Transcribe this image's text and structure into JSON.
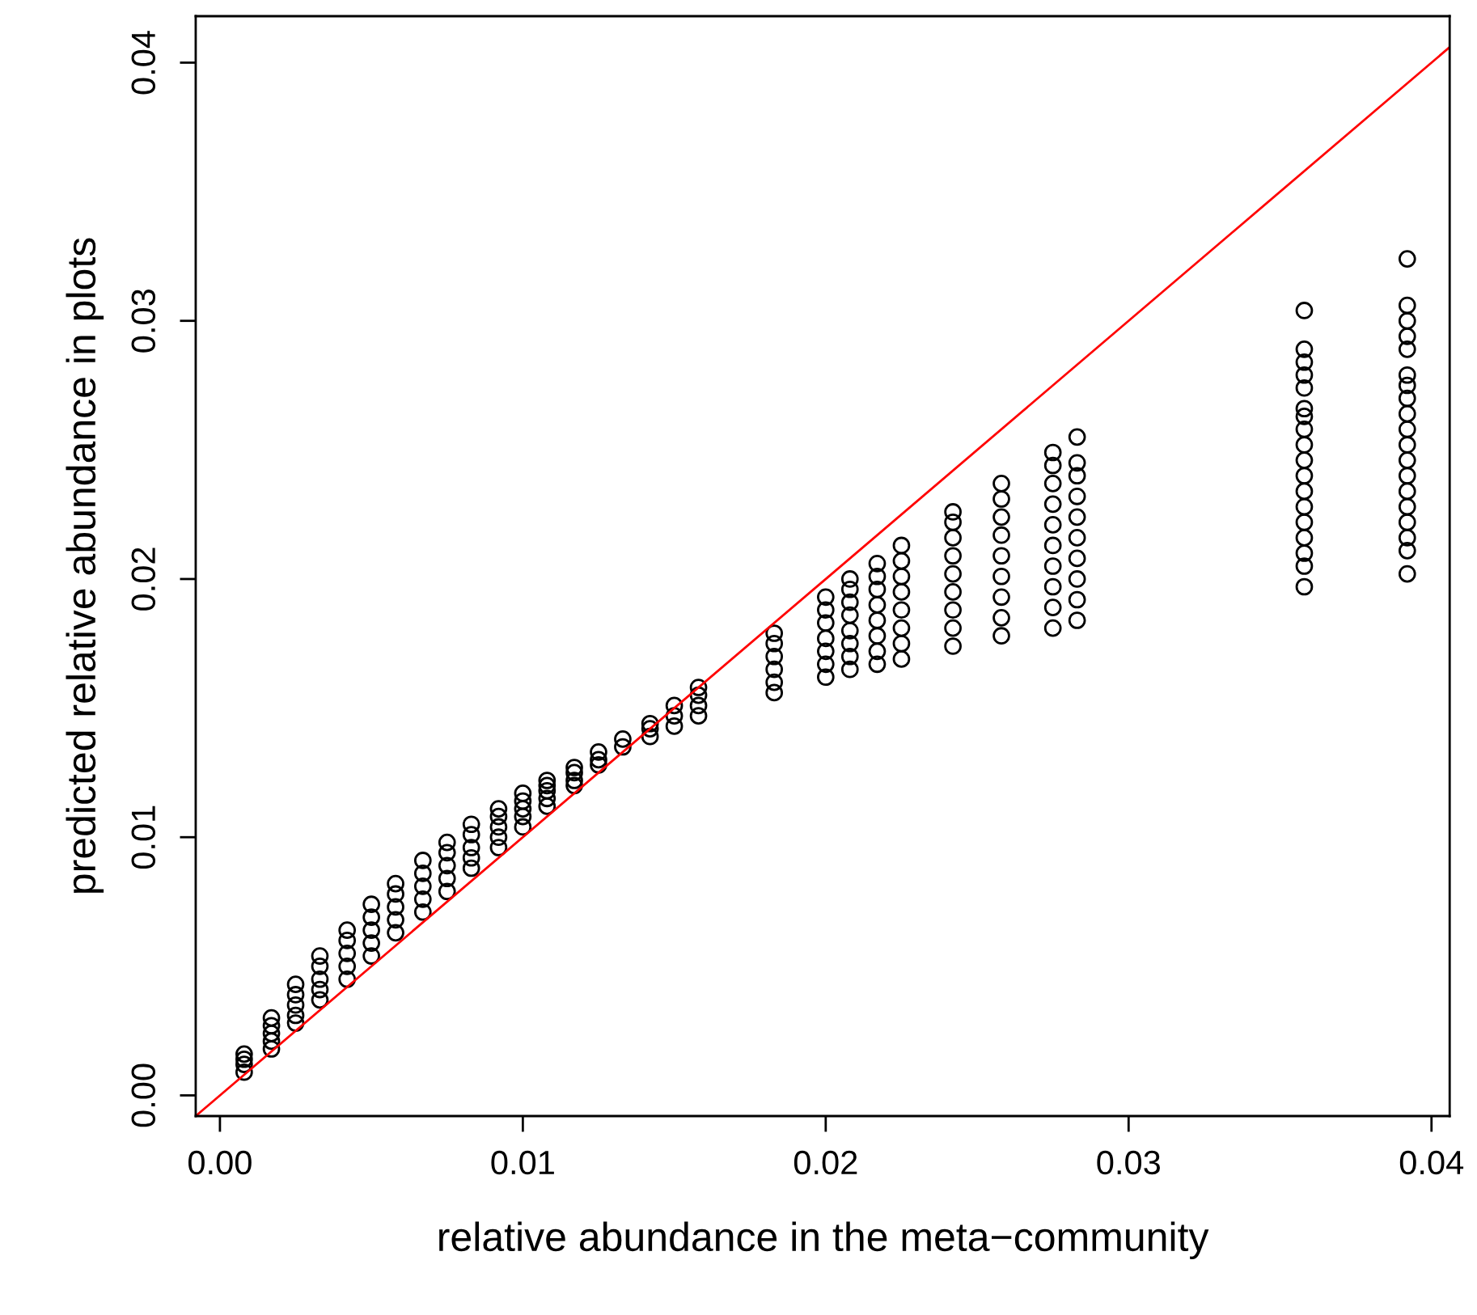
{
  "chart_data": {
    "type": "scatter",
    "xlabel": "relative abundance in the meta−community",
    "ylabel": "predicted relative abundance in plots",
    "xlim": [
      -0.0008,
      0.0406
    ],
    "ylim": [
      -0.0008,
      0.0418
    ],
    "xticks": [
      {
        "value": 0,
        "label": "0.00"
      },
      {
        "value": 0.01,
        "label": "0.01"
      },
      {
        "value": 0.02,
        "label": "0.02"
      },
      {
        "value": 0.03,
        "label": "0.03"
      },
      {
        "value": 0.04,
        "label": "0.04"
      }
    ],
    "yticks": [
      {
        "value": 0,
        "label": "0.00"
      },
      {
        "value": 0.01,
        "label": "0.01"
      },
      {
        "value": 0.02,
        "label": "0.02"
      },
      {
        "value": 0.03,
        "label": "0.03"
      },
      {
        "value": 0.04,
        "label": "0.04"
      }
    ],
    "grid": false,
    "series": [
      {
        "marker": "circle",
        "color": "#000000",
        "x": [
          0.0008,
          0.0008,
          0.0008,
          0.0008,
          0.0017,
          0.0017,
          0.0017,
          0.0017,
          0.0017,
          0.0025,
          0.0025,
          0.0025,
          0.0025,
          0.0025,
          0.0033,
          0.0033,
          0.0033,
          0.0033,
          0.0033,
          0.0042,
          0.0042,
          0.0042,
          0.0042,
          0.0042,
          0.005,
          0.005,
          0.005,
          0.005,
          0.005,
          0.0058,
          0.0058,
          0.0058,
          0.0058,
          0.0058,
          0.0067,
          0.0067,
          0.0067,
          0.0067,
          0.0067,
          0.0075,
          0.0075,
          0.0075,
          0.0075,
          0.0075,
          0.0083,
          0.0083,
          0.0083,
          0.0083,
          0.0083,
          0.0092,
          0.0092,
          0.0092,
          0.0092,
          0.0092,
          0.01,
          0.01,
          0.01,
          0.01,
          0.01,
          0.0108,
          0.0108,
          0.0108,
          0.0108,
          0.0108,
          0.0117,
          0.0117,
          0.0117,
          0.0117,
          0.0125,
          0.0125,
          0.0125,
          0.0133,
          0.0133,
          0.0142,
          0.0142,
          0.0142,
          0.015,
          0.015,
          0.015,
          0.0158,
          0.0158,
          0.0158,
          0.0158,
          0.0183,
          0.0183,
          0.0183,
          0.0183,
          0.0183,
          0.0183,
          0.02,
          0.02,
          0.02,
          0.02,
          0.02,
          0.02,
          0.02,
          0.0208,
          0.0208,
          0.0208,
          0.0208,
          0.0208,
          0.0208,
          0.0208,
          0.0208,
          0.0217,
          0.0217,
          0.0217,
          0.0217,
          0.0217,
          0.0217,
          0.0217,
          0.0217,
          0.0225,
          0.0225,
          0.0225,
          0.0225,
          0.0225,
          0.0225,
          0.0225,
          0.0225,
          0.0242,
          0.0242,
          0.0242,
          0.0242,
          0.0242,
          0.0242,
          0.0242,
          0.0242,
          0.0242,
          0.0258,
          0.0258,
          0.0258,
          0.0258,
          0.0258,
          0.0258,
          0.0258,
          0.0258,
          0.0258,
          0.0275,
          0.0275,
          0.0275,
          0.0275,
          0.0275,
          0.0275,
          0.0275,
          0.0275,
          0.0275,
          0.0275,
          0.0283,
          0.0283,
          0.0283,
          0.0283,
          0.0283,
          0.0283,
          0.0283,
          0.0283,
          0.0283,
          0.0283,
          0.0358,
          0.0358,
          0.0358,
          0.0358,
          0.0358,
          0.0358,
          0.0358,
          0.0358,
          0.0358,
          0.0358,
          0.0358,
          0.0358,
          0.0358,
          0.0358,
          0.0358,
          0.0358,
          0.0358,
          0.0358,
          0.0392,
          0.0392,
          0.0392,
          0.0392,
          0.0392,
          0.0392,
          0.0392,
          0.0392,
          0.0392,
          0.0392,
          0.0392,
          0.0392,
          0.0392,
          0.0392,
          0.0392,
          0.0392,
          0.0392,
          0.0392,
          0.0392
        ],
        "values": [
          0.0009,
          0.0012,
          0.0014,
          0.0016,
          0.0018,
          0.0021,
          0.0024,
          0.0027,
          0.003,
          0.0028,
          0.0031,
          0.0035,
          0.0039,
          0.0043,
          0.0037,
          0.0041,
          0.0045,
          0.005,
          0.0054,
          0.0045,
          0.005,
          0.0055,
          0.006,
          0.0064,
          0.0054,
          0.0059,
          0.0064,
          0.0069,
          0.0074,
          0.0063,
          0.0068,
          0.0073,
          0.0078,
          0.0082,
          0.0071,
          0.0076,
          0.0081,
          0.0086,
          0.0091,
          0.0079,
          0.0084,
          0.0089,
          0.0094,
          0.0098,
          0.0088,
          0.0092,
          0.0096,
          0.0101,
          0.0105,
          0.0096,
          0.01,
          0.0104,
          0.0108,
          0.0111,
          0.0104,
          0.0108,
          0.0111,
          0.0114,
          0.0117,
          0.0112,
          0.0115,
          0.0118,
          0.012,
          0.0122,
          0.012,
          0.0122,
          0.0125,
          0.0127,
          0.0128,
          0.013,
          0.0133,
          0.0135,
          0.0138,
          0.0139,
          0.0142,
          0.0144,
          0.0143,
          0.0147,
          0.0151,
          0.0147,
          0.0151,
          0.0155,
          0.0158,
          0.0156,
          0.016,
          0.0165,
          0.017,
          0.0175,
          0.0179,
          0.0162,
          0.0167,
          0.0172,
          0.0177,
          0.0183,
          0.0188,
          0.0193,
          0.0165,
          0.017,
          0.0175,
          0.018,
          0.0186,
          0.0191,
          0.0196,
          0.02,
          0.0167,
          0.0172,
          0.0178,
          0.0184,
          0.019,
          0.0196,
          0.0201,
          0.0206,
          0.0169,
          0.0175,
          0.0181,
          0.0188,
          0.0195,
          0.0201,
          0.0207,
          0.0213,
          0.0174,
          0.0181,
          0.0188,
          0.0195,
          0.0202,
          0.0209,
          0.0216,
          0.0222,
          0.0226,
          0.0178,
          0.0185,
          0.0193,
          0.0201,
          0.0209,
          0.0217,
          0.0224,
          0.0231,
          0.0237,
          0.0181,
          0.0189,
          0.0197,
          0.0205,
          0.0213,
          0.0221,
          0.0229,
          0.0237,
          0.0244,
          0.0249,
          0.0184,
          0.0192,
          0.02,
          0.0208,
          0.0216,
          0.0224,
          0.0232,
          0.024,
          0.0245,
          0.0255,
          0.0197,
          0.0205,
          0.021,
          0.0216,
          0.0222,
          0.0228,
          0.0234,
          0.024,
          0.0246,
          0.0252,
          0.0258,
          0.0263,
          0.0266,
          0.0274,
          0.0279,
          0.0284,
          0.0289,
          0.0304,
          0.0202,
          0.0211,
          0.0216,
          0.0222,
          0.0228,
          0.0234,
          0.024,
          0.0246,
          0.0252,
          0.0258,
          0.0264,
          0.027,
          0.0275,
          0.0279,
          0.0289,
          0.0294,
          0.03,
          0.0306,
          0.0324
        ]
      },
      {
        "type": "line",
        "color": "#ff0000",
        "x": [
          -0.0008,
          0.0406
        ],
        "values": [
          -0.0008,
          0.0406
        ]
      }
    ]
  }
}
